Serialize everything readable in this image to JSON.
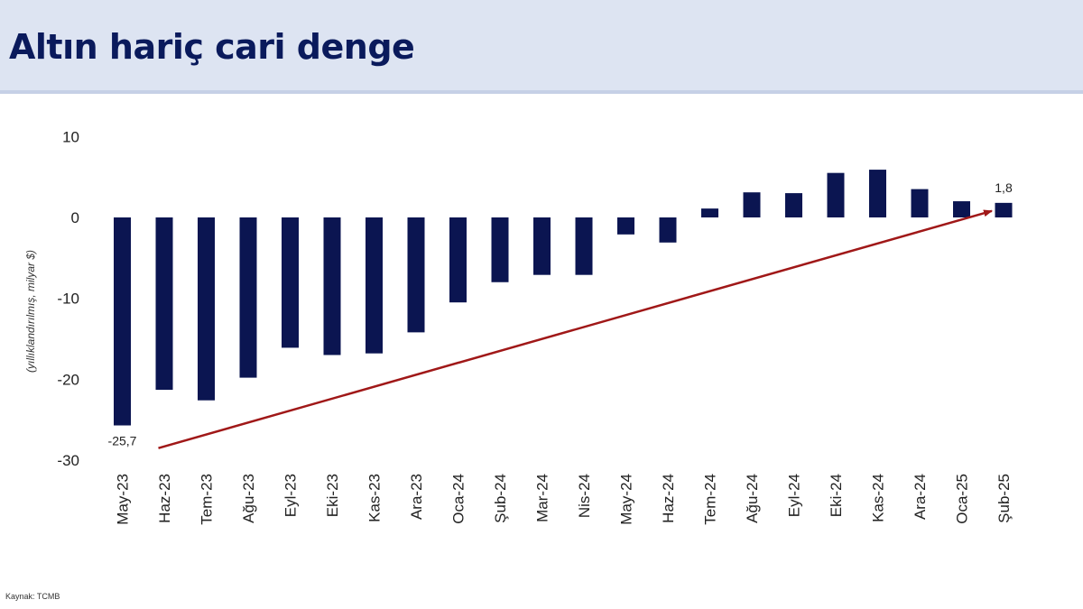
{
  "header": {
    "title": "Altın hariç cari denge"
  },
  "footer": {
    "source": "Kaynak: TCMB"
  },
  "colors": {
    "bar": "#0b1551",
    "arrow": "#a01818",
    "header_bg": "#dde4f2",
    "title": "#0a1a5c"
  },
  "chart_data": {
    "type": "bar",
    "title": "",
    "xlabel": "",
    "ylabel": "(yıllıklandırılmış, milyar $)",
    "ylim": [
      -30,
      10
    ],
    "yticks": [
      10,
      0,
      -10,
      -20,
      -30
    ],
    "categories": [
      "May-23",
      "Haz-23",
      "Tem-23",
      "Ağu-23",
      "Eyl-23",
      "Eki-23",
      "Kas-23",
      "Ara-23",
      "Oca-24",
      "Şub-24",
      "Mar-24",
      "Nis-24",
      "May-24",
      "Haz-24",
      "Tem-24",
      "Ağu-24",
      "Eyl-24",
      "Eki-24",
      "Kas-24",
      "Ara-24",
      "Oca-25",
      "Şub-25"
    ],
    "values": [
      -25.7,
      -21.3,
      -22.6,
      -19.8,
      -16.1,
      -17.0,
      -16.8,
      -14.2,
      -10.5,
      -8.0,
      -7.1,
      -7.1,
      -2.1,
      -3.1,
      1.1,
      3.1,
      3.0,
      5.5,
      5.9,
      3.5,
      2.0,
      1.8
    ],
    "data_labels": [
      {
        "category": "May-23",
        "text": "-25,7"
      },
      {
        "category": "Şub-25",
        "text": "1,8"
      }
    ],
    "annotations": [
      {
        "type": "trend-arrow",
        "from": {
          "category": "May-23",
          "value": -28.5
        },
        "to": {
          "category": "Şub-25",
          "value": 0.8
        }
      }
    ],
    "grid": false,
    "legend": "none"
  }
}
